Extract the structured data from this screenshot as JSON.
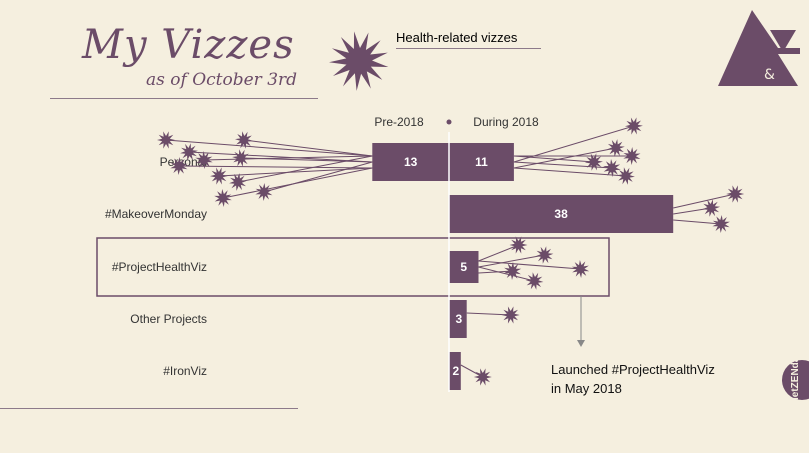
{
  "header": {
    "title": "My Vizzes",
    "subtitle": "as of October 3rd"
  },
  "legend": {
    "label": "Health-related vizzes",
    "icon": "splat-icon"
  },
  "annotation": {
    "line1": "Launched #ProjectHealthViz",
    "line2": "in May 2018"
  },
  "badge": {
    "text": "letZENdata"
  },
  "colors": {
    "bar": "#6b4c68",
    "background": "#f5efdf",
    "highlight_box": "#6b4c68"
  },
  "chart_data": {
    "type": "bar",
    "orientation": "horizontal-diverging",
    "categories": [
      "Personal",
      "#MakeoverMonday",
      "#ProjectHealthViz",
      "Other Projects",
      "#IronViz"
    ],
    "series": [
      {
        "name": "Pre-2018",
        "values": [
          13,
          0,
          0,
          0,
          0
        ]
      },
      {
        "name": "During 2018",
        "values": [
          11,
          38,
          5,
          3,
          2
        ]
      }
    ],
    "health_related_marks": {
      "Personal": 16,
      "#MakeoverMonday": 3,
      "#ProjectHealthViz": 5,
      "Other Projects": 1,
      "#IronViz": 1
    },
    "highlighted_category": "#ProjectHealthViz"
  }
}
